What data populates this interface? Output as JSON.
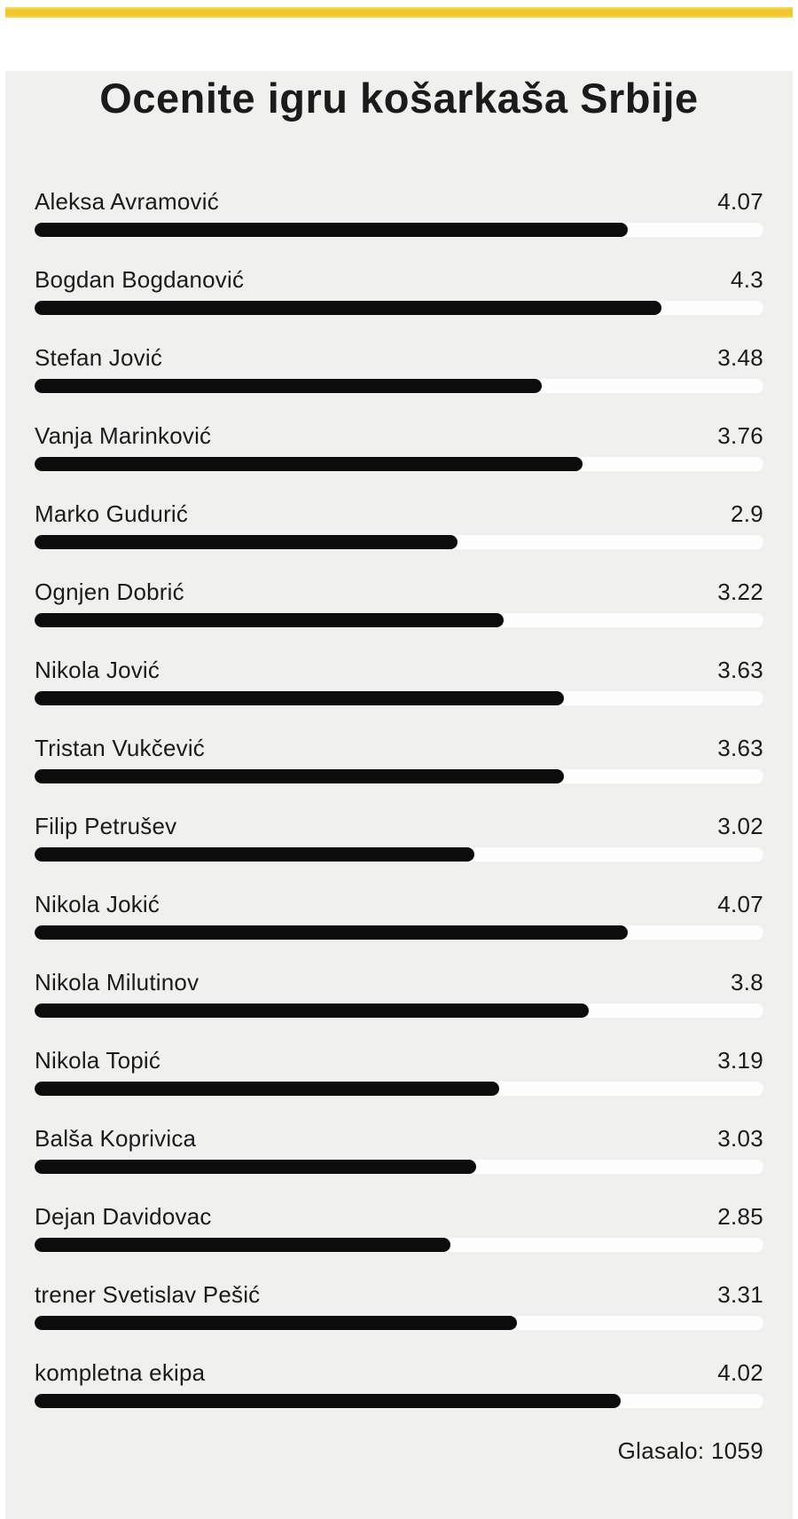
{
  "theme": {
    "accent_yellow": "#F0C82E",
    "page_bg": "#FFFFFF",
    "card_bg": "#F0F0EE",
    "bar_fill": "#0C0C0C",
    "bar_track": "#FDFDFD",
    "text_color": "#1B1B1B"
  },
  "poll": {
    "title": "Ocenite igru košarkaša Srbije",
    "scale_max": 5,
    "footer": "Glasalo: 1059",
    "items": [
      {
        "name": "Aleksa Avramović",
        "rating": 4.07
      },
      {
        "name": "Bogdan Bogdanović",
        "rating": 4.3
      },
      {
        "name": "Stefan Jović",
        "rating": 3.48
      },
      {
        "name": "Vanja Marinković",
        "rating": 3.76
      },
      {
        "name": "Marko Gudurić",
        "rating": 2.9
      },
      {
        "name": "Ognjen Dobrić",
        "rating": 3.22
      },
      {
        "name": "Nikola Jović",
        "rating": 3.63
      },
      {
        "name": "Tristan Vukčević",
        "rating": 3.63
      },
      {
        "name": "Filip Petrušev",
        "rating": 3.02
      },
      {
        "name": "Nikola Jokić",
        "rating": 4.07
      },
      {
        "name": "Nikola Milutinov",
        "rating": 3.8
      },
      {
        "name": "Nikola Topić",
        "rating": 3.19
      },
      {
        "name": "Balša Koprivica",
        "rating": 3.03
      },
      {
        "name": "Dejan Davidovac",
        "rating": 2.85
      },
      {
        "name": "trener Svetislav Pešić",
        "rating": 3.31
      },
      {
        "name": "kompletna ekipa",
        "rating": 4.02
      }
    ]
  },
  "chart_data": {
    "type": "bar",
    "orientation": "horizontal",
    "title": "Ocenite igru košarkaša Srbije",
    "categories": [
      "Aleksa Avramović",
      "Bogdan Bogdanović",
      "Stefan Jović",
      "Vanja Marinković",
      "Marko Gudurić",
      "Ognjen Dobrić",
      "Nikola Jović",
      "Tristan Vukčević",
      "Filip Petrušev",
      "Nikola Jokić",
      "Nikola Milutinov",
      "Nikola Topić",
      "Balša Koprivica",
      "Dejan Davidovac",
      "trener Svetislav Pešić",
      "kompletna ekipa"
    ],
    "values": [
      4.07,
      4.3,
      3.48,
      3.76,
      2.9,
      3.22,
      3.63,
      3.63,
      3.02,
      4.07,
      3.8,
      3.19,
      3.03,
      2.85,
      3.31,
      4.02
    ],
    "xlim": [
      0,
      5
    ],
    "grid": false,
    "legend": false,
    "annotation": "Glasalo: 1059",
    "votes_total": 1059
  }
}
